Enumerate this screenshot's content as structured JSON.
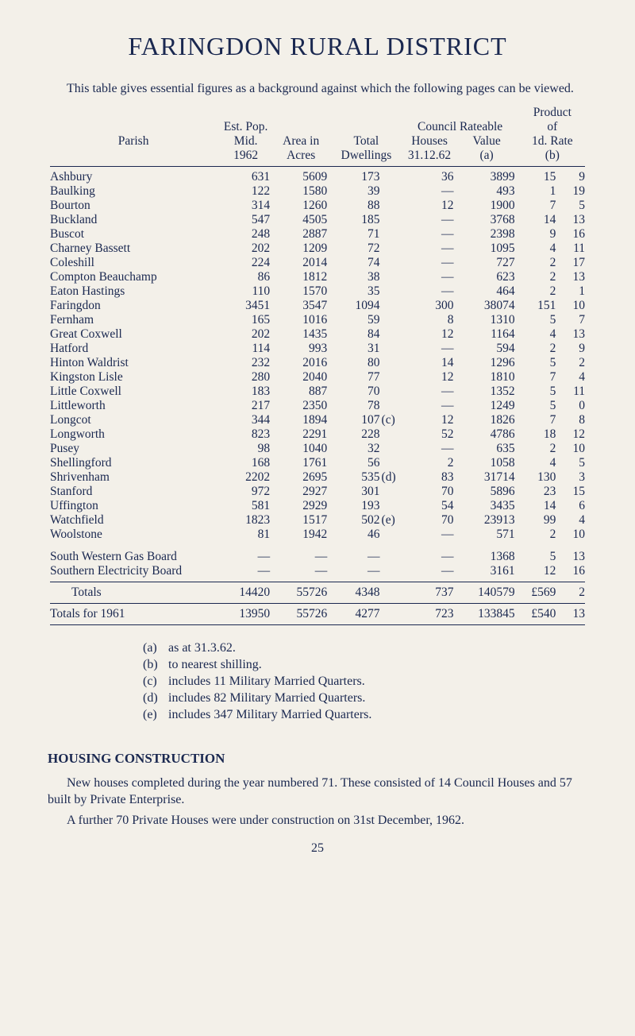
{
  "title": "FARINGDON RURAL DISTRICT",
  "intro": "This table gives essential figures as a background against which the following pages can be viewed.",
  "colors": {
    "ink": "#1a2850",
    "paper": "#f3f0e9"
  },
  "typography": {
    "body_pt": 16,
    "title_pt": 32,
    "h2_pt": 17
  },
  "header": {
    "parish": "Parish",
    "est_pop_line1": "Est. Pop.",
    "est_pop_line2": "Mid.",
    "est_pop_line3": "1962",
    "area_line1": "Area in",
    "area_line2": "Acres",
    "dwell_line1": "Total",
    "dwell_line2": "Dwellings",
    "houses_line1": "Council",
    "houses_line2": "Houses",
    "houses_line3": "31.12.62",
    "value_line1": "Rateable",
    "value_line2": "Value",
    "value_line3": "(a)",
    "product_line1": "Product",
    "product_line2": "of",
    "product_line3": "1d. Rate",
    "product_line4": "(b)"
  },
  "rows": [
    {
      "parish": "Ashbury",
      "pop": "631",
      "area": "5609",
      "dwell": "173",
      "note": "",
      "houses": "36",
      "value": "3899",
      "p1": "15",
      "p2": "9"
    },
    {
      "parish": "Baulking",
      "pop": "122",
      "area": "1580",
      "dwell": "39",
      "note": "",
      "houses": "—",
      "value": "493",
      "p1": "1",
      "p2": "19"
    },
    {
      "parish": "Bourton",
      "pop": "314",
      "area": "1260",
      "dwell": "88",
      "note": "",
      "houses": "12",
      "value": "1900",
      "p1": "7",
      "p2": "5"
    },
    {
      "parish": "Buckland",
      "pop": "547",
      "area": "4505",
      "dwell": "185",
      "note": "",
      "houses": "—",
      "value": "3768",
      "p1": "14",
      "p2": "13"
    },
    {
      "parish": "Buscot",
      "pop": "248",
      "area": "2887",
      "dwell": "71",
      "note": "",
      "houses": "—",
      "value": "2398",
      "p1": "9",
      "p2": "16"
    },
    {
      "parish": "Charney Bassett",
      "pop": "202",
      "area": "1209",
      "dwell": "72",
      "note": "",
      "houses": "—",
      "value": "1095",
      "p1": "4",
      "p2": "11"
    },
    {
      "parish": "Coleshill",
      "pop": "224",
      "area": "2014",
      "dwell": "74",
      "note": "",
      "houses": "—",
      "value": "727",
      "p1": "2",
      "p2": "17"
    },
    {
      "parish": "Compton Beauchamp",
      "pop": "86",
      "area": "1812",
      "dwell": "38",
      "note": "",
      "houses": "—",
      "value": "623",
      "p1": "2",
      "p2": "13"
    },
    {
      "parish": "Eaton Hastings",
      "pop": "110",
      "area": "1570",
      "dwell": "35",
      "note": "",
      "houses": "—",
      "value": "464",
      "p1": "2",
      "p2": "1"
    },
    {
      "parish": "Faringdon",
      "pop": "3451",
      "area": "3547",
      "dwell": "1094",
      "note": "",
      "houses": "300",
      "value": "38074",
      "p1": "151",
      "p2": "10"
    },
    {
      "parish": "Fernham",
      "pop": "165",
      "area": "1016",
      "dwell": "59",
      "note": "",
      "houses": "8",
      "value": "1310",
      "p1": "5",
      "p2": "7"
    },
    {
      "parish": "Great Coxwell",
      "pop": "202",
      "area": "1435",
      "dwell": "84",
      "note": "",
      "houses": "12",
      "value": "1164",
      "p1": "4",
      "p2": "13"
    },
    {
      "parish": "Hatford",
      "pop": "114",
      "area": "993",
      "dwell": "31",
      "note": "",
      "houses": "—",
      "value": "594",
      "p1": "2",
      "p2": "9"
    },
    {
      "parish": "Hinton Waldrist",
      "pop": "232",
      "area": "2016",
      "dwell": "80",
      "note": "",
      "houses": "14",
      "value": "1296",
      "p1": "5",
      "p2": "2"
    },
    {
      "parish": "Kingston Lisle",
      "pop": "280",
      "area": "2040",
      "dwell": "77",
      "note": "",
      "houses": "12",
      "value": "1810",
      "p1": "7",
      "p2": "4"
    },
    {
      "parish": "Little Coxwell",
      "pop": "183",
      "area": "887",
      "dwell": "70",
      "note": "",
      "houses": "—",
      "value": "1352",
      "p1": "5",
      "p2": "11"
    },
    {
      "parish": "Littleworth",
      "pop": "217",
      "area": "2350",
      "dwell": "78",
      "note": "",
      "houses": "—",
      "value": "1249",
      "p1": "5",
      "p2": "0"
    },
    {
      "parish": "Longcot",
      "pop": "344",
      "area": "1894",
      "dwell": "107",
      "note": "(c)",
      "houses": "12",
      "value": "1826",
      "p1": "7",
      "p2": "8"
    },
    {
      "parish": "Longworth",
      "pop": "823",
      "area": "2291",
      "dwell": "228",
      "note": "",
      "houses": "52",
      "value": "4786",
      "p1": "18",
      "p2": "12"
    },
    {
      "parish": "Pusey",
      "pop": "98",
      "area": "1040",
      "dwell": "32",
      "note": "",
      "houses": "—",
      "value": "635",
      "p1": "2",
      "p2": "10"
    },
    {
      "parish": "Shellingford",
      "pop": "168",
      "area": "1761",
      "dwell": "56",
      "note": "",
      "houses": "2",
      "value": "1058",
      "p1": "4",
      "p2": "5"
    },
    {
      "parish": "Shrivenham",
      "pop": "2202",
      "area": "2695",
      "dwell": "535",
      "note": "(d)",
      "houses": "83",
      "value": "31714",
      "p1": "130",
      "p2": "3"
    },
    {
      "parish": "Stanford",
      "pop": "972",
      "area": "2927",
      "dwell": "301",
      "note": "",
      "houses": "70",
      "value": "5896",
      "p1": "23",
      "p2": "15"
    },
    {
      "parish": "Uffington",
      "pop": "581",
      "area": "2929",
      "dwell": "193",
      "note": "",
      "houses": "54",
      "value": "3435",
      "p1": "14",
      "p2": "6"
    },
    {
      "parish": "Watchfield",
      "pop": "1823",
      "area": "1517",
      "dwell": "502",
      "note": "(e)",
      "houses": "70",
      "value": "23913",
      "p1": "99",
      "p2": "4"
    },
    {
      "parish": "Woolstone",
      "pop": "81",
      "area": "1942",
      "dwell": "46",
      "note": "",
      "houses": "—",
      "value": "571",
      "p1": "2",
      "p2": "10"
    }
  ],
  "boards": [
    {
      "parish": "South Western Gas Board",
      "pop": "—",
      "area": "—",
      "dwell": "—",
      "note": "",
      "houses": "—",
      "value": "1368",
      "p1": "5",
      "p2": "13"
    },
    {
      "parish": "Southern Electricity Board",
      "pop": "—",
      "area": "—",
      "dwell": "—",
      "note": "",
      "houses": "—",
      "value": "3161",
      "p1": "12",
      "p2": "16"
    }
  ],
  "totals": {
    "parish": "Totals",
    "pop": "14420",
    "area": "55726",
    "dwell": "4348",
    "note": "",
    "houses": "737",
    "value": "140579",
    "p1": "£569",
    "p2": "2"
  },
  "totals1961": {
    "parish": "Totals for 1961",
    "pop": "13950",
    "area": "55726",
    "dwell": "4277",
    "note": "",
    "houses": "723",
    "value": "133845",
    "p1": "£540",
    "p2": "13"
  },
  "notes": [
    {
      "label": "(a)",
      "text": "as at 31.3.62."
    },
    {
      "label": "(b)",
      "text": "to nearest shilling."
    },
    {
      "label": "(c)",
      "text": "includes 11 Military Married Quarters."
    },
    {
      "label": "(d)",
      "text": "includes 82 Military Married Quarters."
    },
    {
      "label": "(e)",
      "text": "includes 347 Military Married Quarters."
    }
  ],
  "section2": {
    "heading": "HOUSING CONSTRUCTION",
    "p1": "New houses completed during the year numbered 71. These consisted of 14 Council Houses and 57 built by Private Enterprise.",
    "p2": "A further 70 Private Houses were under construction on 31st December, 1962."
  },
  "page_number": "25"
}
